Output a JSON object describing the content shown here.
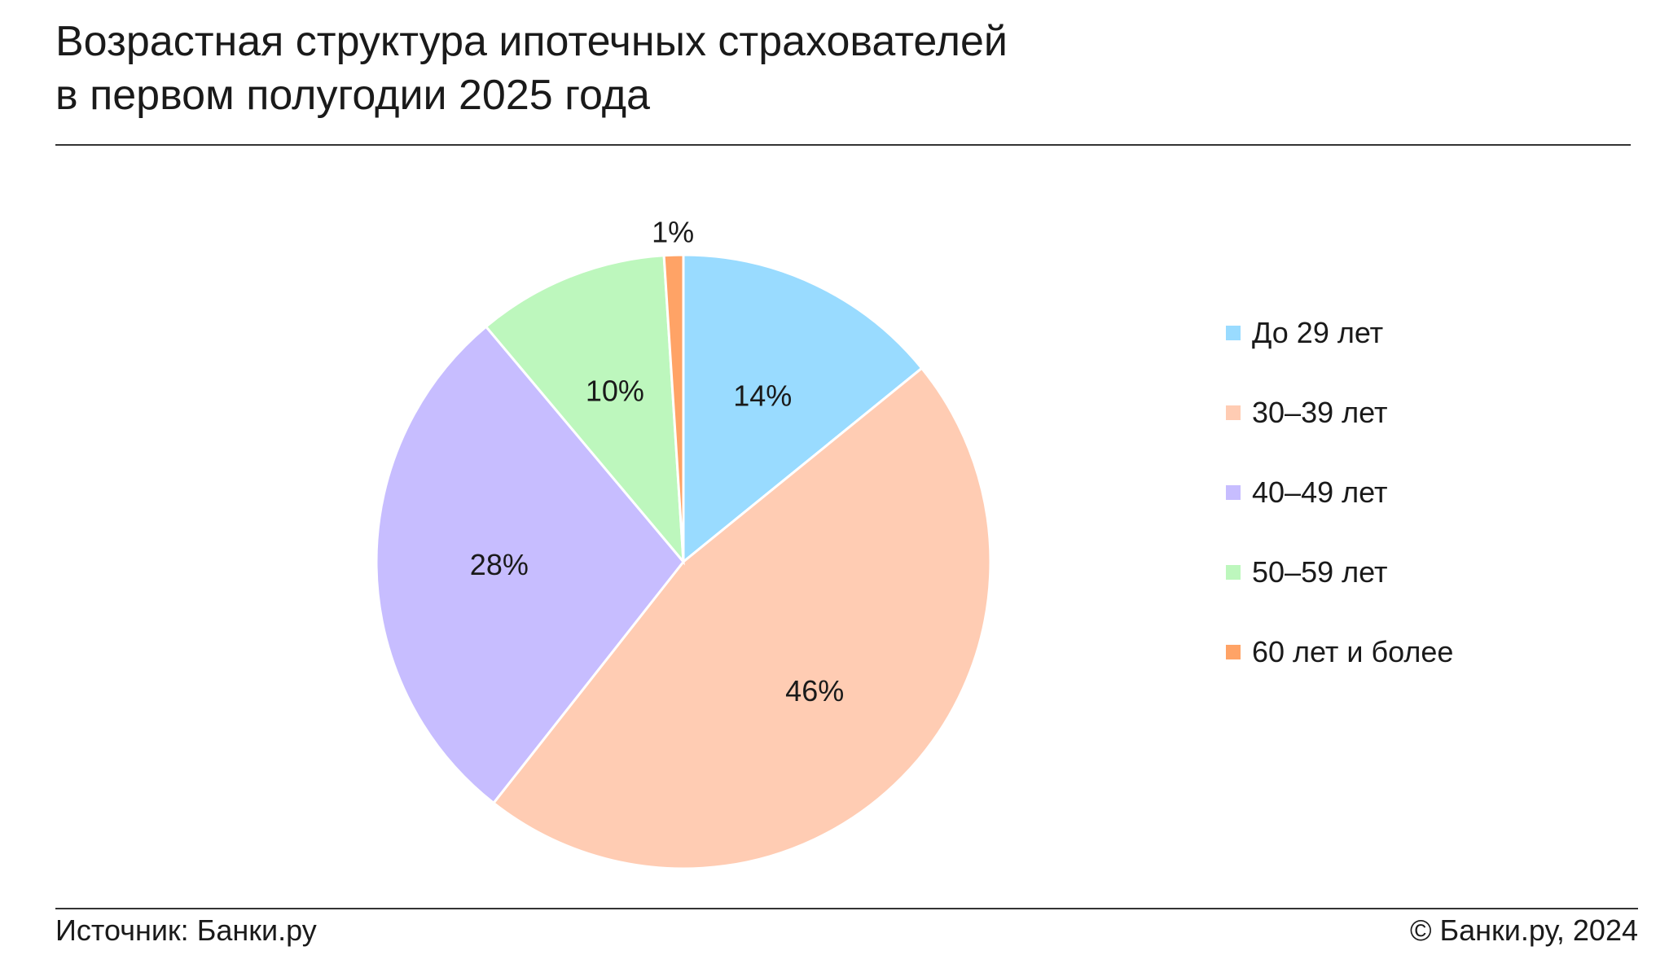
{
  "title_lines": [
    "Возрастная структура ипотечных страхователей",
    "в первом полугодии 2025 года"
  ],
  "footer": {
    "source": "Источник: Банки.ру",
    "copyright": "© Банки.ру, 2024"
  },
  "chart_data": {
    "type": "pie",
    "title": "Возрастная структура ипотечных страхователей в первом полугодии 2025 года",
    "legend_position": "right",
    "slices": [
      {
        "name": "До 29 лет",
        "value": 14,
        "label": "14%",
        "color": "#99DBFF"
      },
      {
        "name": "30–39 лет",
        "value": 46,
        "label": "46%",
        "color": "#FFCCB3"
      },
      {
        "name": "40–49 лет",
        "value": 28,
        "label": "28%",
        "color": "#C7BDFF"
      },
      {
        "name": "50–59 лет",
        "value": 10,
        "label": "10%",
        "color": "#BDF7BD"
      },
      {
        "name": "60 лет и более",
        "value": 1,
        "label": "1%",
        "color": "#FFA366"
      }
    ]
  }
}
